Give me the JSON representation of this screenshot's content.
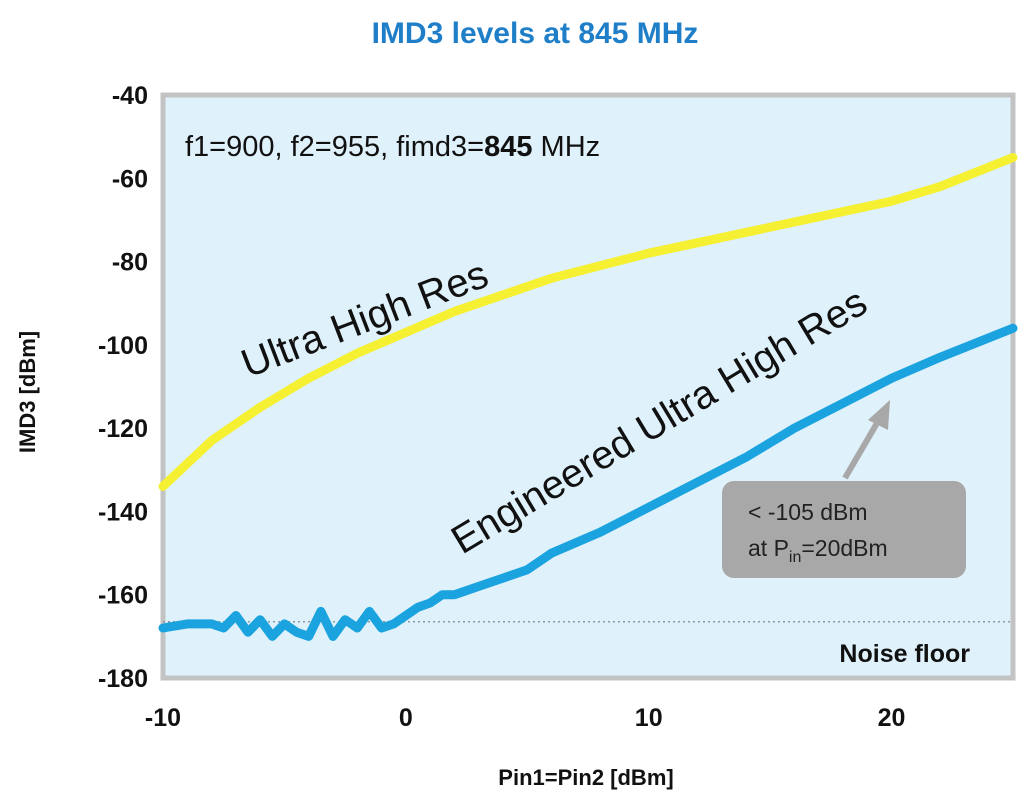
{
  "chart_data": {
    "type": "line",
    "title": "IMD3 levels at 845 MHz",
    "xlabel": "Pin1=Pin2 [dBm]",
    "ylabel": "IMD3 [dBm]",
    "xlim": [
      -10,
      25
    ],
    "ylim": [
      -180,
      -40
    ],
    "xticks": [
      -10,
      0,
      10,
      20
    ],
    "yticks": [
      -40,
      -60,
      -80,
      -100,
      -120,
      -140,
      -160,
      -180
    ],
    "grid": false,
    "background_color": "#dff1fb",
    "condition": {
      "prefix": "f1=900, f2=955, fimd3=",
      "value": "845",
      "suffix": " MHz"
    },
    "series": [
      {
        "name": "Ultra High Res",
        "color": "#f5f032",
        "x": [
          -10,
          -8,
          -6,
          -4,
          -2,
          0,
          2,
          4,
          6,
          8,
          10,
          12,
          14,
          16,
          18,
          20,
          22,
          25
        ],
        "y": [
          -134,
          -123,
          -115,
          -108,
          -102,
          -97,
          -92,
          -88,
          -84,
          -81,
          -78,
          -75.5,
          -73,
          -70.5,
          -68,
          -65.5,
          -62,
          -55
        ]
      },
      {
        "name": "Engineered Ultra High Res",
        "color": "#1aa3df",
        "x": [
          -10,
          -9,
          -8,
          -7.5,
          -7,
          -6.5,
          -6,
          -5.5,
          -5,
          -4.5,
          -4,
          -3.5,
          -3,
          -2.5,
          -2,
          -1.5,
          -1,
          -0.5,
          0,
          0.5,
          1,
          1.5,
          2,
          3,
          4,
          5,
          6,
          8,
          10,
          12,
          14,
          16,
          18,
          20,
          22,
          25
        ],
        "y": [
          -168,
          -167,
          -167,
          -168,
          -165,
          -169,
          -166,
          -170,
          -167,
          -169,
          -170,
          -164,
          -170,
          -166,
          -168,
          -164,
          -168,
          -167,
          -165,
          -163,
          -162,
          -160,
          -160,
          -158,
          -156,
          -154,
          -150,
          -145,
          -139,
          -133,
          -127,
          -120,
          -114,
          -108,
          -103,
          -96
        ]
      }
    ],
    "reference_lines": [
      {
        "name": "Noise floor",
        "y": -166.5,
        "style": "dotted"
      }
    ],
    "annotations": {
      "callout_line1": "< -105 dBm",
      "callout_line2_prefix": "at P",
      "callout_line2_sub": "in",
      "callout_line2_suffix": "=20dBm",
      "callout_point": {
        "x": 20,
        "y": -110
      },
      "callout_color": "#a8a8a8"
    }
  }
}
